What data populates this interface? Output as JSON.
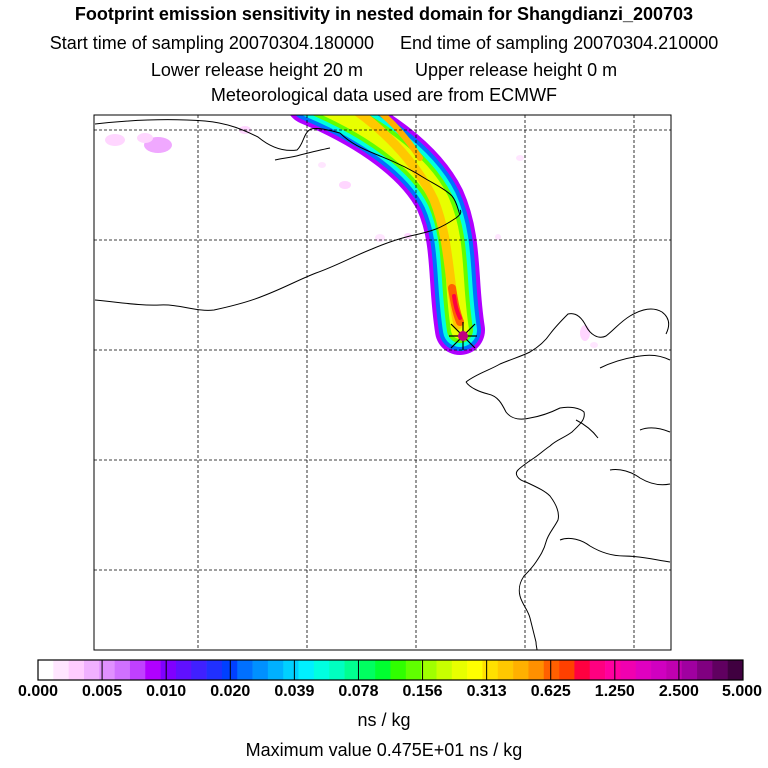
{
  "header": {
    "title": "Footprint emission sensitivity in nested domain for Shangdianzi_200703",
    "start_label": "Start time of sampling 20070304.180000",
    "end_label": "End time of sampling 20070304.210000",
    "lower_label": "Lower release height   20 m",
    "upper_label": "Upper release height    0 m",
    "met_label": "Meteorological data used are from ECMWF"
  },
  "legend": {
    "tick_labels": [
      "0.000",
      "0.005",
      "0.010",
      "0.020",
      "0.039",
      "0.078",
      "0.156",
      "0.313",
      "0.625",
      "1.250",
      "2.500",
      "5.000"
    ],
    "units": "ns / kg",
    "max_value": "Maximum value  0.475E+01 ns / kg",
    "colors": [
      "#ffffff",
      "#ffe6ff",
      "#ffccff",
      "#f0b0ff",
      "#e090ff",
      "#d070ff",
      "#c040ff",
      "#b000ff",
      "#8000ff",
      "#6010ff",
      "#4020ff",
      "#2030ff",
      "#0040ff",
      "#0070ff",
      "#0090ff",
      "#00b0ff",
      "#00d0ff",
      "#00f0ff",
      "#00ffe0",
      "#00ffc0",
      "#00ff90",
      "#00ff60",
      "#00ff30",
      "#30ff00",
      "#60ff00",
      "#a0ff00",
      "#c8ff00",
      "#e8ff00",
      "#ffff00",
      "#ffe000",
      "#ffc800",
      "#ffb000",
      "#ff9000",
      "#ff6000",
      "#ff4000",
      "#ff0040",
      "#ff0080",
      "#ff00a0",
      "#f000b0",
      "#e000c0",
      "#d000c0",
      "#c000b0",
      "#a000a0",
      "#800080",
      "#600060",
      "#400040"
    ]
  },
  "map": {
    "receptor_marker": "star-marker",
    "colors": {
      "frame": "#000000",
      "coast": "#000000",
      "grid": "#000000"
    }
  }
}
